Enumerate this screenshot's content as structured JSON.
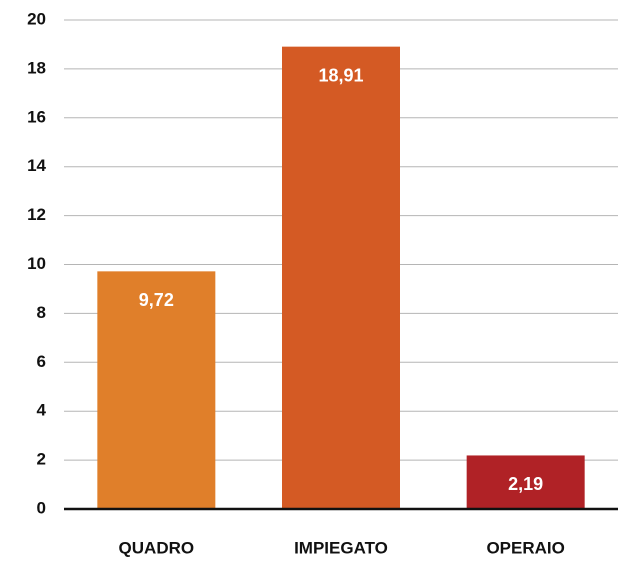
{
  "chart_data": {
    "type": "bar",
    "categories": [
      "QUADRO",
      "IMPIEGATO",
      "OPERAIO"
    ],
    "values": [
      9.72,
      18.91,
      2.19
    ],
    "value_labels": [
      "9,72",
      "18,91",
      "2,19"
    ],
    "colors": [
      "#e07f2a",
      "#d45a24",
      "#b02226"
    ],
    "ylim": [
      0,
      20
    ],
    "yticks": [
      0,
      2,
      4,
      6,
      8,
      10,
      12,
      14,
      16,
      18,
      20
    ],
    "grid": true
  }
}
